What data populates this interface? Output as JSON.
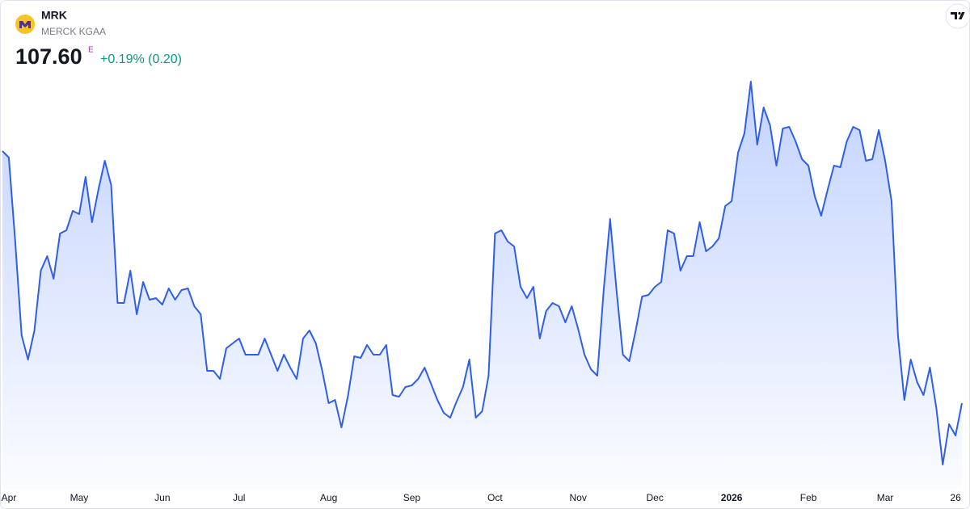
{
  "header": {
    "ticker": "MRK",
    "company": "MERCK KGAA",
    "price": "107.60",
    "price_flag": "E",
    "change": "+0.19% (0.20)"
  },
  "chart_data": {
    "type": "area",
    "color": "#2f5fe8",
    "grid": false,
    "ylim": [
      102.3,
      131.3
    ],
    "categories": [
      null,
      "Apr",
      null,
      null,
      null,
      null,
      null,
      null,
      null,
      null,
      null,
      null,
      "May",
      null,
      null,
      null,
      null,
      null,
      null,
      null,
      null,
      null,
      null,
      null,
      null,
      "Jun",
      null,
      null,
      null,
      null,
      null,
      null,
      null,
      null,
      null,
      null,
      null,
      "Jul",
      null,
      null,
      null,
      null,
      null,
      null,
      null,
      null,
      null,
      null,
      null,
      null,
      null,
      "Aug",
      null,
      null,
      null,
      null,
      null,
      null,
      null,
      null,
      null,
      null,
      null,
      null,
      "Sep",
      null,
      null,
      null,
      null,
      null,
      null,
      null,
      null,
      null,
      null,
      null,
      null,
      "Oct",
      null,
      null,
      null,
      null,
      null,
      null,
      null,
      null,
      null,
      null,
      null,
      null,
      "Nov",
      null,
      null,
      null,
      null,
      null,
      null,
      null,
      null,
      null,
      null,
      null,
      "Dec",
      null,
      null,
      null,
      null,
      null,
      null,
      null,
      null,
      null,
      null,
      null,
      "2026",
      null,
      null,
      null,
      null,
      null,
      null,
      null,
      null,
      null,
      null,
      null,
      "Feb",
      null,
      null,
      null,
      null,
      null,
      null,
      null,
      null,
      null,
      null,
      null,
      "Mar",
      null,
      null,
      null,
      null,
      null,
      null,
      null,
      null,
      null,
      null,
      "26",
      null
    ],
    "values": [
      123.2,
      122.8,
      117.6,
      111.8,
      110.3,
      112.1,
      115.8,
      116.7,
      115.3,
      118.1,
      118.3,
      119.5,
      119.3,
      121.6,
      118.8,
      120.8,
      122.6,
      121.1,
      113.8,
      113.8,
      115.8,
      113.1,
      115.1,
      114.0,
      114.1,
      113.7,
      114.7,
      114.0,
      114.6,
      114.7,
      113.6,
      113.1,
      109.6,
      109.6,
      109.1,
      111.0,
      111.3,
      111.6,
      110.6,
      110.6,
      110.6,
      111.6,
      110.6,
      109.6,
      110.6,
      109.8,
      109.1,
      111.6,
      112.1,
      111.3,
      109.6,
      107.6,
      107.8,
      106.1,
      108.0,
      110.5,
      110.4,
      111.2,
      110.6,
      110.6,
      111.2,
      108.1,
      108.0,
      108.6,
      108.7,
      109.1,
      109.8,
      108.8,
      107.8,
      107.0,
      106.7,
      107.7,
      108.6,
      110.3,
      106.7,
      107.1,
      109.3,
      118.1,
      118.3,
      117.6,
      117.3,
      114.8,
      114.1,
      114.8,
      111.6,
      113.3,
      113.8,
      113.6,
      112.6,
      113.6,
      112.2,
      110.6,
      109.7,
      109.3,
      114.6,
      119.0,
      114.6,
      110.6,
      110.2,
      112.1,
      114.2,
      114.3,
      114.8,
      115.1,
      118.3,
      118.1,
      115.8,
      116.7,
      116.7,
      118.8,
      117.0,
      117.3,
      117.8,
      119.8,
      120.1,
      123.1,
      124.3,
      127.5,
      123.6,
      125.9,
      124.8,
      122.3,
      124.6,
      124.7,
      123.8,
      122.7,
      122.3,
      120.4,
      119.2,
      120.8,
      122.3,
      122.2,
      123.8,
      124.7,
      124.5,
      122.6,
      122.7,
      124.5,
      122.6,
      120.1,
      111.8,
      107.8,
      110.3,
      108.9,
      108.1,
      109.8,
      107.3,
      103.8,
      106.3,
      105.6,
      107.6
    ]
  }
}
